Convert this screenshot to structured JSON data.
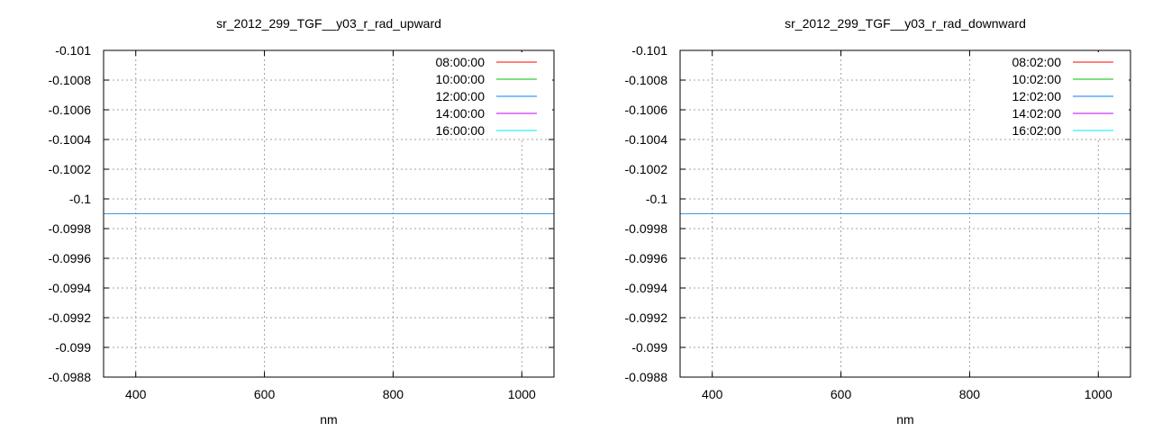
{
  "chart_data": [
    {
      "type": "line",
      "title": "sr_2012_299_TGF__y03_r_rad_upward",
      "xlabel": "nm",
      "ylabel": "",
      "xlim": [
        350,
        1050
      ],
      "ylim": [
        -0.101,
        -0.0988
      ],
      "y_axis_reversed": true,
      "xticks": [
        400,
        600,
        800,
        1000
      ],
      "xtick_labels": [
        "400",
        "600",
        "800",
        "1000"
      ],
      "yticks": [
        -0.101,
        -0.1008,
        -0.1006,
        -0.1004,
        -0.1002,
        -0.1,
        -0.0998,
        -0.0996,
        -0.0994,
        -0.0992,
        -0.099,
        -0.0988
      ],
      "ytick_labels": [
        "-0.101",
        "-0.1008",
        "-0.1006",
        "-0.1004",
        "-0.1002",
        "-0.1",
        "-0.0998",
        "-0.0996",
        "-0.0994",
        "-0.0992",
        "-0.099",
        "-0.0988"
      ],
      "grid": true,
      "legend_position": "top-right",
      "series": [
        {
          "name": "08:00:00",
          "color": "#ff0000",
          "x": [
            350,
            1050
          ],
          "y": [
            -0.0999,
            -0.0999
          ]
        },
        {
          "name": "10:00:00",
          "color": "#00c000",
          "x": [
            350,
            1050
          ],
          "y": [
            -0.0999,
            -0.0999
          ]
        },
        {
          "name": "12:00:00",
          "color": "#0080ff",
          "x": [
            350,
            1050
          ],
          "y": [
            -0.0999,
            -0.0999
          ]
        },
        {
          "name": "14:00:00",
          "color": "#c000ff",
          "x": [
            350,
            1050
          ],
          "y": [
            -0.0999,
            -0.0999
          ]
        },
        {
          "name": "16:00:00",
          "color": "#00eeee",
          "x": [
            350,
            1050
          ],
          "y": [
            -0.0999,
            -0.0999
          ]
        }
      ]
    },
    {
      "type": "line",
      "title": "sr_2012_299_TGF__y03_r_rad_downward",
      "xlabel": "nm",
      "ylabel": "",
      "xlim": [
        350,
        1050
      ],
      "ylim": [
        -0.101,
        -0.0988
      ],
      "y_axis_reversed": true,
      "xticks": [
        400,
        600,
        800,
        1000
      ],
      "xtick_labels": [
        "400",
        "600",
        "800",
        "1000"
      ],
      "yticks": [
        -0.101,
        -0.1008,
        -0.1006,
        -0.1004,
        -0.1002,
        -0.1,
        -0.0998,
        -0.0996,
        -0.0994,
        -0.0992,
        -0.099,
        -0.0988
      ],
      "ytick_labels": [
        "-0.101",
        "-0.1008",
        "-0.1006",
        "-0.1004",
        "-0.1002",
        "-0.1",
        "-0.0998",
        "-0.0996",
        "-0.0994",
        "-0.0992",
        "-0.099",
        "-0.0988"
      ],
      "grid": true,
      "legend_position": "top-right",
      "series": [
        {
          "name": "08:02:00",
          "color": "#ff0000",
          "x": [
            350,
            1050
          ],
          "y": [
            -0.0999,
            -0.0999
          ]
        },
        {
          "name": "10:02:00",
          "color": "#00c000",
          "x": [
            350,
            1050
          ],
          "y": [
            -0.0999,
            -0.0999
          ]
        },
        {
          "name": "12:02:00",
          "color": "#0080ff",
          "x": [
            350,
            1050
          ],
          "y": [
            -0.0999,
            -0.0999
          ]
        },
        {
          "name": "14:02:00",
          "color": "#c000ff",
          "x": [
            350,
            1050
          ],
          "y": [
            -0.0999,
            -0.0999
          ]
        },
        {
          "name": "16:02:00",
          "color": "#00eeee",
          "x": [
            350,
            1050
          ],
          "y": [
            -0.0999,
            -0.0999
          ]
        }
      ]
    }
  ]
}
